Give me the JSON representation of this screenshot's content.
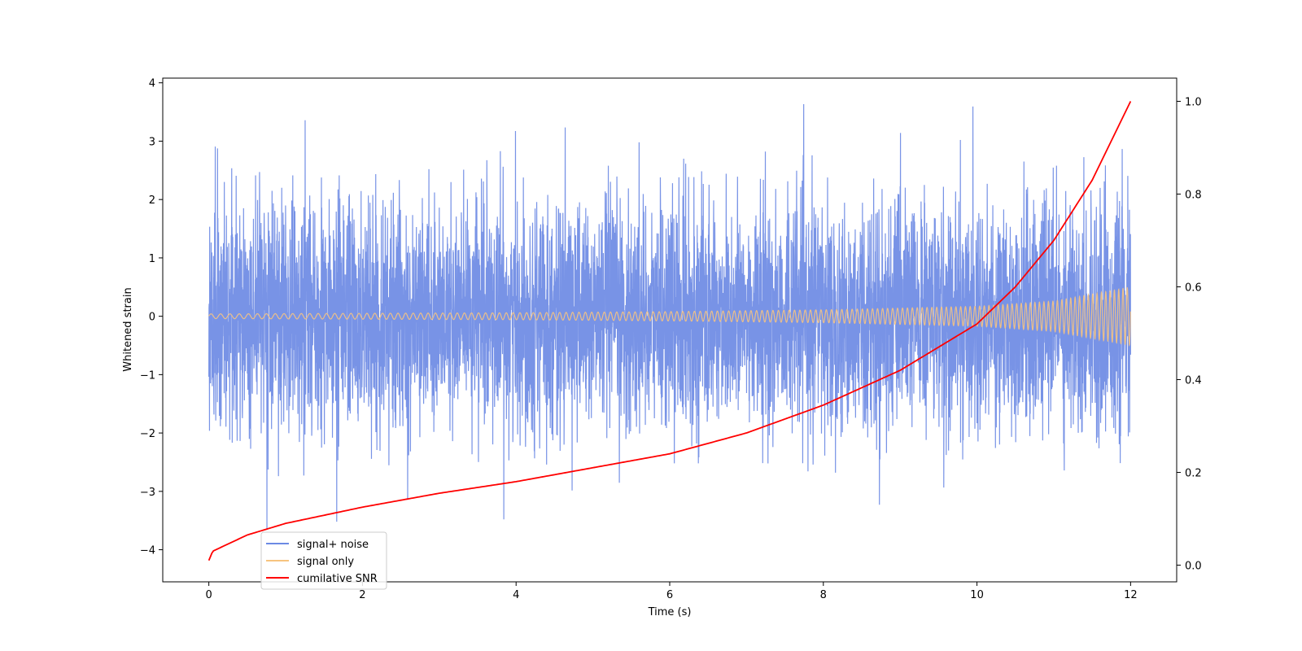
{
  "chart_data": {
    "type": "line",
    "title": "",
    "xlabel": "Time (s)",
    "ylabel": "Whitened strain",
    "y2label": "",
    "xlim": [
      -0.6,
      12.6
    ],
    "ylim": [
      -4.55,
      4.08
    ],
    "y2lim": [
      -0.036,
      1.05
    ],
    "x_ticks": [
      0,
      2,
      4,
      6,
      8,
      10,
      12
    ],
    "y_ticks": [
      -4,
      -3,
      -2,
      -1,
      0,
      1,
      2,
      3,
      4
    ],
    "y2_ticks": [
      0.0,
      0.2,
      0.4,
      0.6,
      0.8,
      1.0
    ],
    "grid": false,
    "legend_position": "lower-left",
    "series": [
      {
        "name": "signal+ noise",
        "axis": "left",
        "color": "#6c8ae4",
        "x_range": [
          0,
          12
        ],
        "noise_std": 0.95,
        "min": -4.15,
        "max": 3.7
      },
      {
        "name": "signal only",
        "axis": "left",
        "color": "#f7c47f",
        "x_range": [
          0,
          12
        ],
        "amplitude_envelope": {
          "x": [
            0,
            2,
            4,
            6,
            8,
            10,
            11,
            12
          ],
          "y": [
            0.04,
            0.05,
            0.06,
            0.08,
            0.11,
            0.17,
            0.26,
            0.5
          ]
        },
        "frequency_hz": {
          "start": 8,
          "end": 18
        }
      },
      {
        "name": "cumilative SNR",
        "axis": "right",
        "color": "#ff0000",
        "x": [
          0,
          0.05,
          0.5,
          1,
          2,
          3,
          4,
          5,
          6,
          7,
          8,
          9,
          10,
          10.5,
          11,
          11.5,
          12
        ],
        "y": [
          0.01,
          0.03,
          0.065,
          0.09,
          0.125,
          0.155,
          0.18,
          0.21,
          0.24,
          0.285,
          0.345,
          0.42,
          0.52,
          0.6,
          0.7,
          0.83,
          1.0
        ]
      }
    ]
  }
}
